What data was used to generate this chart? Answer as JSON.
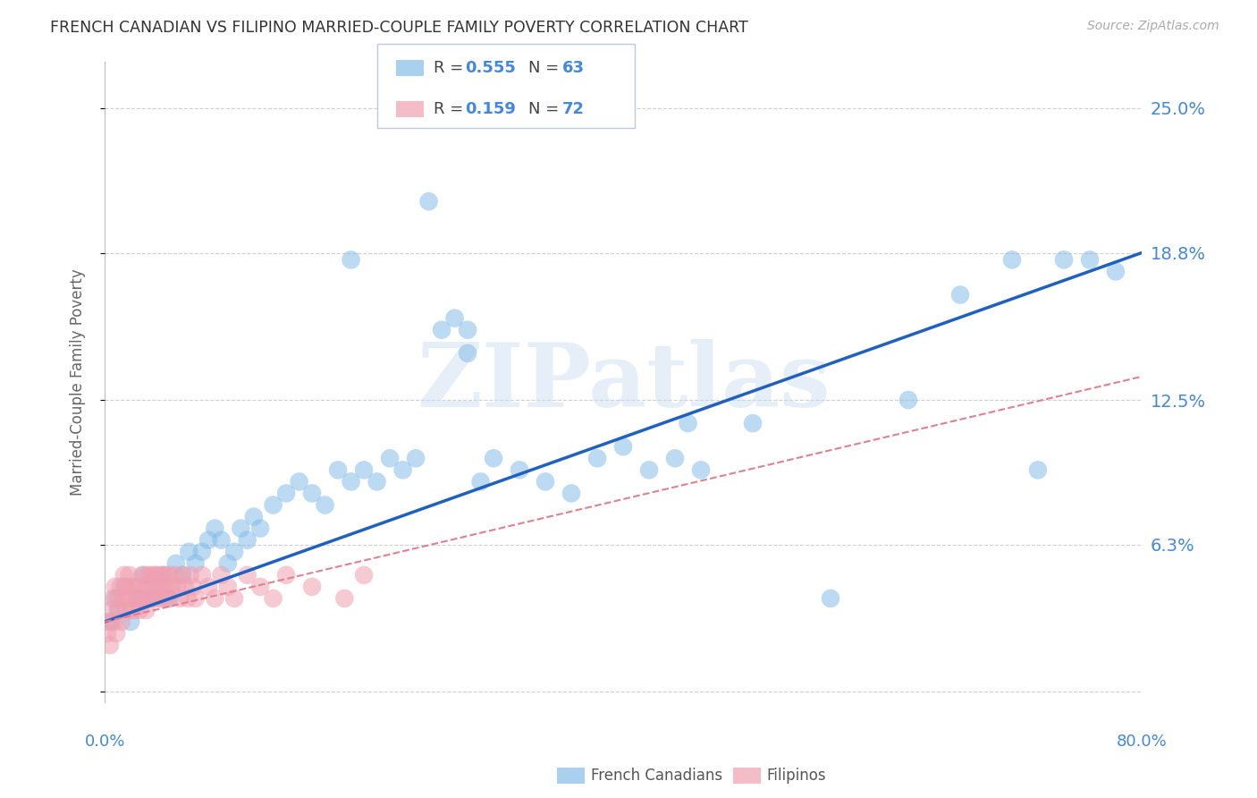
{
  "title": "FRENCH CANADIAN VS FILIPINO MARRIED-COUPLE FAMILY POVERTY CORRELATION CHART",
  "source": "Source: ZipAtlas.com",
  "ylabel": "Married-Couple Family Poverty",
  "xlim": [
    0.0,
    0.8
  ],
  "ylim": [
    -0.005,
    0.27
  ],
  "yticks": [
    0.0,
    0.063,
    0.125,
    0.188,
    0.25
  ],
  "ytick_labels": [
    "",
    "6.3%",
    "12.5%",
    "18.8%",
    "25.0%"
  ],
  "xticks": [
    0.0,
    0.2,
    0.4,
    0.6,
    0.8
  ],
  "watermark": "ZIPatlas",
  "fc_color": "#85bde8",
  "fp_color": "#f0a0b0",
  "fc_line_color": "#2060c0",
  "fp_line_color": "#e08090",
  "grid_color": "#d0d0d0",
  "background_color": "#ffffff",
  "tick_label_color": "#4488dd",
  "title_color": "#333333",
  "source_color": "#aaaaaa",
  "ylabel_color": "#666666",
  "fc_seed": 42,
  "fp_seed": 99,
  "fc_points_x": [
    0.005,
    0.008,
    0.01,
    0.015,
    0.02,
    0.025,
    0.03,
    0.035,
    0.04,
    0.045,
    0.05,
    0.055,
    0.06,
    0.065,
    0.07,
    0.075,
    0.08,
    0.085,
    0.09,
    0.095,
    0.1,
    0.105,
    0.11,
    0.115,
    0.12,
    0.13,
    0.14,
    0.15,
    0.16,
    0.17,
    0.18,
    0.19,
    0.2,
    0.21,
    0.22,
    0.23,
    0.24,
    0.25,
    0.26,
    0.27,
    0.28,
    0.29,
    0.3,
    0.32,
    0.34,
    0.36,
    0.38,
    0.4,
    0.42,
    0.44,
    0.46,
    0.5,
    0.56,
    0.62,
    0.66,
    0.7,
    0.72,
    0.74,
    0.76,
    0.78,
    0.19,
    0.28,
    0.45
  ],
  "fc_points_y": [
    0.03,
    0.04,
    0.035,
    0.045,
    0.03,
    0.04,
    0.05,
    0.04,
    0.045,
    0.05,
    0.04,
    0.055,
    0.05,
    0.06,
    0.055,
    0.06,
    0.065,
    0.07,
    0.065,
    0.055,
    0.06,
    0.07,
    0.065,
    0.075,
    0.07,
    0.08,
    0.085,
    0.09,
    0.085,
    0.08,
    0.095,
    0.09,
    0.095,
    0.09,
    0.1,
    0.095,
    0.1,
    0.21,
    0.155,
    0.16,
    0.145,
    0.09,
    0.1,
    0.095,
    0.09,
    0.085,
    0.1,
    0.105,
    0.095,
    0.1,
    0.095,
    0.115,
    0.04,
    0.125,
    0.17,
    0.185,
    0.095,
    0.185,
    0.185,
    0.18,
    0.185,
    0.155,
    0.115
  ],
  "fp_points_x": [
    0.002,
    0.003,
    0.004,
    0.005,
    0.006,
    0.007,
    0.008,
    0.009,
    0.01,
    0.011,
    0.012,
    0.013,
    0.014,
    0.015,
    0.016,
    0.017,
    0.018,
    0.019,
    0.02,
    0.021,
    0.022,
    0.023,
    0.024,
    0.025,
    0.026,
    0.027,
    0.028,
    0.029,
    0.03,
    0.031,
    0.032,
    0.033,
    0.034,
    0.035,
    0.036,
    0.037,
    0.038,
    0.039,
    0.04,
    0.041,
    0.042,
    0.043,
    0.044,
    0.045,
    0.046,
    0.047,
    0.048,
    0.049,
    0.05,
    0.052,
    0.054,
    0.056,
    0.058,
    0.06,
    0.062,
    0.064,
    0.066,
    0.068,
    0.07,
    0.075,
    0.08,
    0.085,
    0.09,
    0.095,
    0.1,
    0.11,
    0.12,
    0.13,
    0.14,
    0.16,
    0.185,
    0.2
  ],
  "fp_points_y": [
    0.025,
    0.03,
    0.02,
    0.035,
    0.04,
    0.03,
    0.045,
    0.025,
    0.04,
    0.035,
    0.045,
    0.03,
    0.04,
    0.05,
    0.035,
    0.045,
    0.04,
    0.05,
    0.035,
    0.045,
    0.04,
    0.035,
    0.045,
    0.04,
    0.045,
    0.035,
    0.04,
    0.05,
    0.04,
    0.045,
    0.035,
    0.05,
    0.04,
    0.045,
    0.05,
    0.04,
    0.045,
    0.05,
    0.04,
    0.05,
    0.045,
    0.04,
    0.05,
    0.045,
    0.04,
    0.05,
    0.045,
    0.04,
    0.05,
    0.045,
    0.05,
    0.045,
    0.04,
    0.05,
    0.045,
    0.04,
    0.05,
    0.045,
    0.04,
    0.05,
    0.045,
    0.04,
    0.05,
    0.045,
    0.04,
    0.05,
    0.045,
    0.04,
    0.05,
    0.045,
    0.04,
    0.05
  ],
  "fc_line_x": [
    0.0,
    0.8
  ],
  "fc_line_y": [
    0.03,
    0.188
  ],
  "fp_line_x": [
    0.0,
    0.8
  ],
  "fp_line_y": [
    0.03,
    0.135
  ]
}
